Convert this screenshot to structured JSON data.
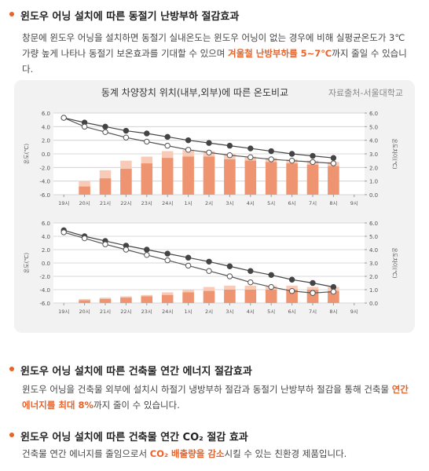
{
  "sections": [
    {
      "title": "윈도우 어닝 설치에 따른 동절기 난방부하 절감효과",
      "paragraph": [
        "창문에 윈도우 어닝을 설치하면 동절기 실내온도는 윈도우 어닝이 없는 경우에 비해 실평균온도가 3℃가량 높게 나타나 동절기 보온효과를 기대할 수 있으며 ",
        "겨울철 난방부하를 5~7℃",
        "까지 줄일 수 있습니다."
      ]
    },
    {
      "title": "윈도우 어닝 설치에 따른 건축물 연간 에너지 절감효과",
      "paragraph": [
        "윈도우 어닝을 건축물 외부에 설치시 하절기 냉방부하 절감과 동절기 난방부하 절감을 통해 건축물 ",
        "연간 에너지를 최대 8%",
        "까지 줄이 수 있습니다."
      ]
    },
    {
      "title": "윈도우 어닝 설치에 따른 건축물 연간 CO₂ 절감 효과",
      "paragraph": [
        "건축물 연간 에너지를 줄임으로서 ",
        "CO₂ 배출량을 감소",
        "시킬 수 있는 친환경 제품입니다."
      ]
    }
  ],
  "figure": {
    "title": "동계 차양장치 위치(내부,외부)에 따른 온도비교",
    "source": "자료출처-서울대학교"
  },
  "chart_data": [
    {
      "type": "combo",
      "y_label": "온도(℃)",
      "y2_label": "온도차이(℃)",
      "categories": [
        "19시",
        "20시",
        "21시",
        "22시",
        "23시",
        "24시",
        "1시",
        "2시",
        "3시",
        "4시",
        "5시",
        "6시",
        "7시",
        "8시",
        "9시"
      ],
      "ylim": [
        -6,
        6
      ],
      "yticks": [
        {
          "value": 6,
          "label": "6.0"
        },
        {
          "value": 4,
          "label": "4.0"
        },
        {
          "value": 2,
          "label": "2.0"
        },
        {
          "value": 0,
          "label": "0.0"
        },
        {
          "value": -2,
          "label": "-2.0"
        },
        {
          "value": -4,
          "label": "-4.0"
        },
        {
          "value": -6,
          "label": "-6.0"
        }
      ],
      "y2lim": [
        0,
        6
      ],
      "y2ticks": [
        {
          "value": 0,
          "label": "0.0"
        },
        {
          "value": 1,
          "label": "1.0"
        },
        {
          "value": 2,
          "label": "2.0"
        },
        {
          "value": 3,
          "label": "3.0"
        },
        {
          "value": 4,
          "label": "4.0"
        },
        {
          "value": 5,
          "label": "5.0"
        },
        {
          "value": 6,
          "label": "6.0"
        }
      ],
      "bars": [
        {
          "color": "#f9cbb6",
          "axis": "y2",
          "values": [
            null,
            1.0,
            1.8,
            2.5,
            2.8,
            3.2,
            3.3,
            3.2,
            3.0,
            2.8,
            2.7,
            2.6,
            2.5,
            2.4,
            null
          ]
        },
        {
          "color": "#ef9470",
          "axis": "y2",
          "values": [
            null,
            0.6,
            1.2,
            1.9,
            2.3,
            2.7,
            2.8,
            2.8,
            2.6,
            2.5,
            2.4,
            2.3,
            2.2,
            2.1,
            null
          ]
        }
      ],
      "lines": [
        {
          "color": "#444444",
          "marker": "filled",
          "values": [
            5.3,
            4.6,
            4.0,
            3.4,
            3.0,
            2.5,
            2.0,
            1.6,
            1.2,
            0.8,
            0.4,
            0.0,
            -0.3,
            -0.6,
            null
          ]
        },
        {
          "color": "#555555",
          "marker": "open",
          "values": [
            5.3,
            4.0,
            3.2,
            2.4,
            1.8,
            1.2,
            0.6,
            0.2,
            -0.2,
            -0.5,
            -0.8,
            -1.0,
            -1.2,
            -1.4,
            null
          ]
        }
      ]
    },
    {
      "type": "combo",
      "y_label": "온도(℃)",
      "y2_label": "온도차이(℃)",
      "categories": [
        "19시",
        "20시",
        "21시",
        "22시",
        "23시",
        "24시",
        "1시",
        "2시",
        "3시",
        "4시",
        "5시",
        "6시",
        "7시",
        "8시",
        "9시"
      ],
      "ylim": [
        -6,
        6
      ],
      "yticks": [
        {
          "value": 6,
          "label": "6.0"
        },
        {
          "value": 4,
          "label": "4.0"
        },
        {
          "value": 2,
          "label": "2.0"
        },
        {
          "value": 0,
          "label": "0.0"
        },
        {
          "value": -2,
          "label": "-2.0"
        },
        {
          "value": -4,
          "label": "-4.0"
        },
        {
          "value": -6,
          "label": "-6.0"
        }
      ],
      "y2lim": [
        0,
        6
      ],
      "y2ticks": [
        {
          "value": 0,
          "label": "0.0"
        },
        {
          "value": 1,
          "label": "1.0"
        },
        {
          "value": 2,
          "label": "2.0"
        },
        {
          "value": 3,
          "label": "3.0"
        },
        {
          "value": 4,
          "label": "4.0"
        },
        {
          "value": 5,
          "label": "5.0"
        },
        {
          "value": 6,
          "label": "6.0"
        }
      ],
      "bars": [
        {
          "color": "#f9cbb6",
          "axis": "y2",
          "values": [
            null,
            0.3,
            0.4,
            0.5,
            0.6,
            0.8,
            1.0,
            1.2,
            1.3,
            1.3,
            1.3,
            1.3,
            1.2,
            1.2,
            null
          ]
        },
        {
          "color": "#ef9470",
          "axis": "y2",
          "values": [
            null,
            0.2,
            0.3,
            0.4,
            0.5,
            0.6,
            0.8,
            0.9,
            1.0,
            1.0,
            1.0,
            1.0,
            1.0,
            0.9,
            null
          ]
        }
      ],
      "lines": [
        {
          "color": "#444444",
          "marker": "filled",
          "values": [
            4.9,
            4.0,
            3.3,
            2.6,
            2.0,
            1.4,
            0.8,
            0.2,
            -0.5,
            -1.2,
            -1.8,
            -2.5,
            -3.0,
            -3.6,
            null
          ]
        },
        {
          "color": "#555555",
          "marker": "open",
          "values": [
            4.6,
            3.7,
            2.8,
            2.0,
            1.2,
            0.4,
            -0.4,
            -1.2,
            -2.0,
            -2.9,
            -3.6,
            -4.2,
            -4.5,
            -4.3,
            null
          ]
        }
      ]
    }
  ]
}
